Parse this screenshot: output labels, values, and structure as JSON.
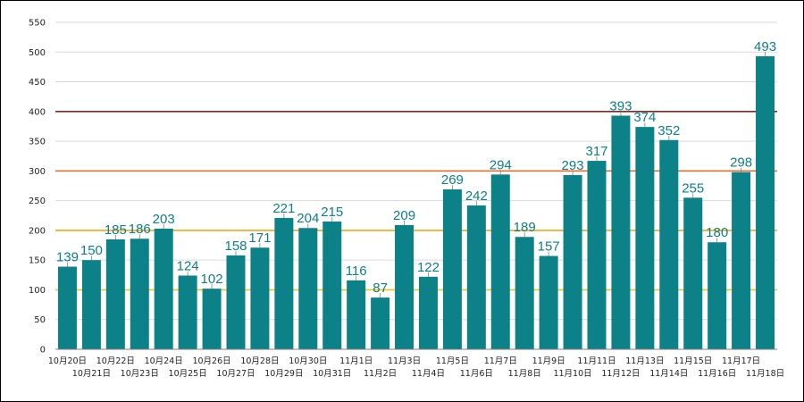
{
  "chart_data": {
    "type": "bar",
    "title": "",
    "xlabel": "",
    "ylabel": "",
    "ylim": [
      0,
      550
    ],
    "yticks": [
      0,
      50,
      100,
      150,
      200,
      250,
      300,
      350,
      400,
      450,
      500,
      550
    ],
    "grid": true,
    "legend": "none",
    "categories": [
      "10月20日",
      "10月21日",
      "10月22日",
      "10月23日",
      "10月24日",
      "10月25日",
      "10月26日",
      "10月27日",
      "10月28日",
      "10月29日",
      "10月30日",
      "10月31日",
      "11月1日",
      "11月2日",
      "11月3日",
      "11月4日",
      "11月5日",
      "11月6日",
      "11月7日",
      "11月8日",
      "11月9日",
      "11月10日",
      "11月11日",
      "11月12日",
      "11月13日",
      "11月14日",
      "11月15日",
      "11月16日",
      "11月17日",
      "11月18日"
    ],
    "values": [
      139,
      150,
      185,
      186,
      203,
      124,
      102,
      158,
      171,
      221,
      204,
      215,
      116,
      87,
      209,
      122,
      269,
      242,
      294,
      189,
      157,
      293,
      317,
      393,
      374,
      352,
      255,
      180,
      298,
      493
    ],
    "reference_lines": [
      {
        "value": 100,
        "color": "#f2c21b"
      },
      {
        "value": 200,
        "color": "#f0a91a"
      },
      {
        "value": 300,
        "color": "#e8651e"
      },
      {
        "value": 400,
        "color": "#7a2a22"
      }
    ],
    "colors": {
      "bar": "#0c8288",
      "bar_label": "#0c7f85",
      "grid": "#d9d9d9",
      "axis": "#808080"
    }
  }
}
